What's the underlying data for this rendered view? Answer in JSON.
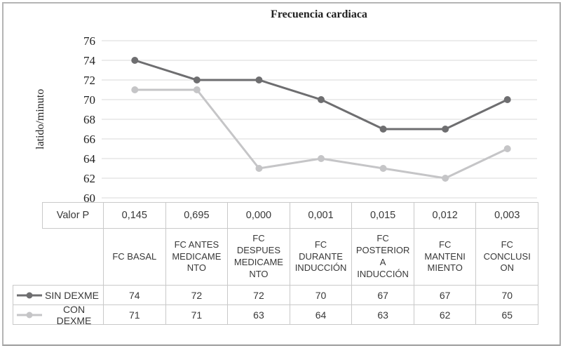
{
  "chart_data": {
    "type": "line",
    "title": "Frecuencia cardiaca",
    "ylabel": "latido/minuto",
    "ylim": [
      60,
      76
    ],
    "ytick_step": 2,
    "grid": true,
    "legend_position": "data-table-left",
    "categories": [
      "FC BASAL",
      "FC ANTES\nMEDICAME\nNTO",
      "FC\nDESPUES\nMEDICAME\nNTO",
      "FC\nDURANTE\nINDUCCIÓN",
      "FC\nPOSTERIOR\nA\nINDUCCIÓN",
      "FC\nMANTENI\nMIENTO",
      "FC\nCONCLUSI\nON"
    ],
    "series": [
      {
        "name": "SIN DEXME",
        "color": "#6e6e70",
        "values": [
          74,
          72,
          72,
          70,
          67,
          67,
          70
        ]
      },
      {
        "name": "CON DEXME",
        "color": "#c5c5c7",
        "values": [
          71,
          71,
          63,
          64,
          63,
          62,
          65
        ]
      }
    ]
  },
  "p_value_row": {
    "label": "Valor P",
    "values": [
      "0,145",
      "0,695",
      "0,000",
      "0,001",
      "0,015",
      "0,012",
      "0,003"
    ]
  },
  "colors": {
    "gridline": "#d9d9d9",
    "table_border": "#c9c9c9",
    "series_dark": "#6e6e70",
    "series_light": "#c5c5c7"
  }
}
